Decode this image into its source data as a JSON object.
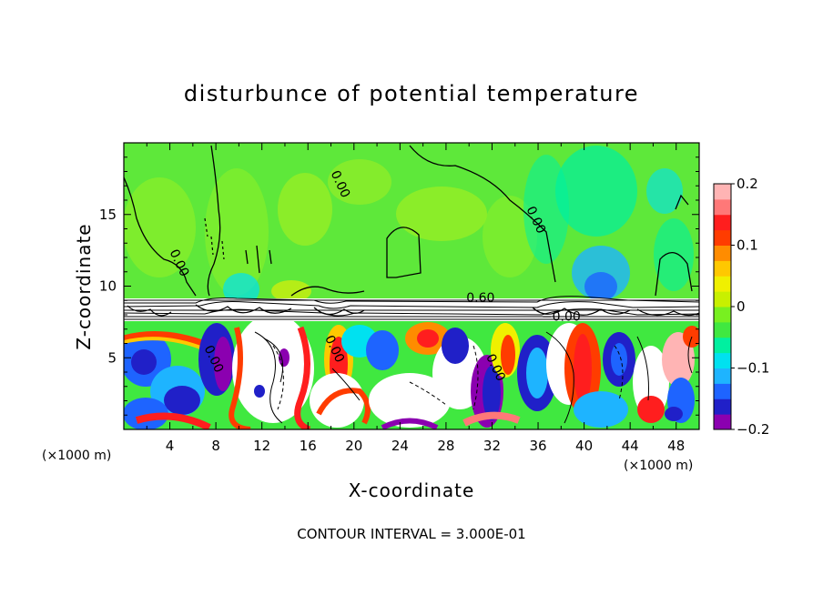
{
  "chart_data": {
    "type": "heatmap",
    "title": "disturbunce of potential temperature",
    "xlabel": "X-coordinate",
    "ylabel": "Z-coordinate",
    "x_unit_left": "(×1000 m)",
    "x_unit_right": "(×1000 m)",
    "xlim": [
      0,
      50
    ],
    "ylim": [
      0,
      20
    ],
    "xticks": [
      4,
      8,
      12,
      16,
      20,
      24,
      28,
      32,
      36,
      40,
      44,
      48
    ],
    "yticks": [
      5,
      10,
      15
    ],
    "colorbar": {
      "min": -0.2,
      "max": 0.2,
      "ticks": [
        "0.2",
        "0.1",
        "0",
        "−0.1",
        "−0.2"
      ],
      "tick_values": [
        0.2,
        0.1,
        0,
        -0.1,
        -0.2
      ],
      "colors": [
        "#8b00b0",
        "#2020c8",
        "#1e64ff",
        "#1eb4ff",
        "#00e1f0",
        "#00f0a0",
        "#40e840",
        "#78f020",
        "#c8f000",
        "#f0f000",
        "#ffc800",
        "#ff8c00",
        "#ff3c00",
        "#ff1e1e",
        "#ff7878",
        "#ffb4b4"
      ]
    },
    "contour_labels": [
      {
        "text": "0.00",
        "x": 18.5,
        "z": 17.0
      },
      {
        "text": "0.00",
        "x": 4.5,
        "z": 11.5
      },
      {
        "text": "0.00",
        "x": 35.5,
        "z": 14.5
      },
      {
        "text": "0.60",
        "x": 31.0,
        "z": 8.9
      },
      {
        "text": "−0.00",
        "x": 38.0,
        "z": 7.6
      },
      {
        "text": "0.00",
        "x": 7.5,
        "z": 4.8
      },
      {
        "text": "0.00",
        "x": 18.0,
        "z": 5.5
      },
      {
        "text": "0.00",
        "x": 32.0,
        "z": 4.2
      }
    ],
    "contour_interval_text": "CONTOUR INTERVAL = 3.000E-01",
    "features": {
      "upper_layer": {
        "z_range": [
          9.0,
          20.0
        ],
        "dominant_value": 0.02,
        "color": "#5ee83a"
      },
      "inversion_band": {
        "z_range": [
          7.6,
          9.0
        ],
        "dominant_value": 0.6,
        "color": "#ffffff"
      },
      "lower_layer": {
        "z_range": [
          0.0,
          7.6
        ],
        "value_range": [
          -0.2,
          0.2
        ]
      }
    }
  }
}
